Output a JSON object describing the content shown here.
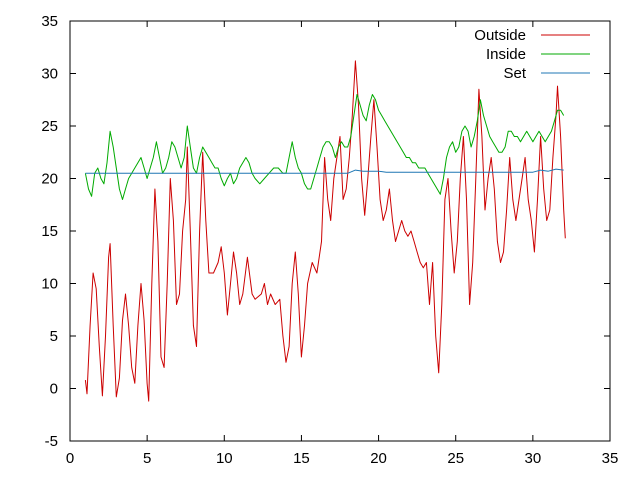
{
  "chart_data": {
    "type": "line",
    "title": "",
    "xlabel": "",
    "ylabel": "",
    "xlim": [
      0,
      35
    ],
    "ylim": [
      -5,
      35
    ],
    "xticks": [
      0,
      5,
      10,
      15,
      20,
      25,
      30,
      35
    ],
    "yticks": [
      -5,
      0,
      5,
      10,
      15,
      20,
      25,
      30,
      35
    ],
    "grid": false,
    "legend_position": "top-right",
    "series": [
      {
        "name": "Outside",
        "color": "#cc0000",
        "points": [
          [
            1.0,
            0.8
          ],
          [
            1.1,
            -0.5
          ],
          [
            1.3,
            6.0
          ],
          [
            1.5,
            11.0
          ],
          [
            1.7,
            9.5
          ],
          [
            1.9,
            4.0
          ],
          [
            2.1,
            -0.7
          ],
          [
            2.3,
            5.0
          ],
          [
            2.5,
            12.5
          ],
          [
            2.6,
            13.8
          ],
          [
            2.8,
            6.0
          ],
          [
            3.0,
            -0.8
          ],
          [
            3.2,
            1.0
          ],
          [
            3.4,
            6.5
          ],
          [
            3.6,
            9.0
          ],
          [
            3.8,
            6.0
          ],
          [
            4.0,
            2.0
          ],
          [
            4.2,
            0.5
          ],
          [
            4.4,
            6.0
          ],
          [
            4.6,
            10.0
          ],
          [
            4.8,
            6.5
          ],
          [
            5.0,
            0.5
          ],
          [
            5.1,
            -1.2
          ],
          [
            5.3,
            10.0
          ],
          [
            5.5,
            19.0
          ],
          [
            5.7,
            14.0
          ],
          [
            5.9,
            3.0
          ],
          [
            6.1,
            2.0
          ],
          [
            6.3,
            10.0
          ],
          [
            6.5,
            20.0
          ],
          [
            6.7,
            16.0
          ],
          [
            6.9,
            8.0
          ],
          [
            7.1,
            9.0
          ],
          [
            7.3,
            15.0
          ],
          [
            7.5,
            18.0
          ],
          [
            7.6,
            23.0
          ],
          [
            7.8,
            15.0
          ],
          [
            8.0,
            6.0
          ],
          [
            8.2,
            4.0
          ],
          [
            8.4,
            15.0
          ],
          [
            8.6,
            22.5
          ],
          [
            8.8,
            16.0
          ],
          [
            9.0,
            11.0
          ],
          [
            9.3,
            11.0
          ],
          [
            9.6,
            12.0
          ],
          [
            9.8,
            13.5
          ],
          [
            10.0,
            11.0
          ],
          [
            10.2,
            7.0
          ],
          [
            10.4,
            10.0
          ],
          [
            10.6,
            13.0
          ],
          [
            10.8,
            11.0
          ],
          [
            11.0,
            8.0
          ],
          [
            11.2,
            9.0
          ],
          [
            11.5,
            12.5
          ],
          [
            11.8,
            9.0
          ],
          [
            12.0,
            8.5
          ],
          [
            12.4,
            9.0
          ],
          [
            12.6,
            10.0
          ],
          [
            12.8,
            8.0
          ],
          [
            13.0,
            9.0
          ],
          [
            13.3,
            8.0
          ],
          [
            13.6,
            8.5
          ],
          [
            13.8,
            5.0
          ],
          [
            14.0,
            2.5
          ],
          [
            14.2,
            4.0
          ],
          [
            14.4,
            10.0
          ],
          [
            14.6,
            13.0
          ],
          [
            14.8,
            9.0
          ],
          [
            15.0,
            3.0
          ],
          [
            15.2,
            6.0
          ],
          [
            15.4,
            10.0
          ],
          [
            15.7,
            12.0
          ],
          [
            16.0,
            11.0
          ],
          [
            16.3,
            14.0
          ],
          [
            16.5,
            22.0
          ],
          [
            16.7,
            18.0
          ],
          [
            16.9,
            16.0
          ],
          [
            17.1,
            20.0
          ],
          [
            17.3,
            22.0
          ],
          [
            17.5,
            24.0
          ],
          [
            17.7,
            18.0
          ],
          [
            17.9,
            19.0
          ],
          [
            18.1,
            22.0
          ],
          [
            18.3,
            26.0
          ],
          [
            18.5,
            31.2
          ],
          [
            18.7,
            27.0
          ],
          [
            18.9,
            20.0
          ],
          [
            19.1,
            16.5
          ],
          [
            19.3,
            20.0
          ],
          [
            19.5,
            24.0
          ],
          [
            19.7,
            27.5
          ],
          [
            19.9,
            23.0
          ],
          [
            20.1,
            18.0
          ],
          [
            20.3,
            16.0
          ],
          [
            20.5,
            17.0
          ],
          [
            20.7,
            19.0
          ],
          [
            20.9,
            16.0
          ],
          [
            21.1,
            14.0
          ],
          [
            21.3,
            15.0
          ],
          [
            21.5,
            16.0
          ],
          [
            21.7,
            15.0
          ],
          [
            21.9,
            14.5
          ],
          [
            22.1,
            15.0
          ],
          [
            22.3,
            14.0
          ],
          [
            22.5,
            13.0
          ],
          [
            22.7,
            12.0
          ],
          [
            22.9,
            11.5
          ],
          [
            23.1,
            12.0
          ],
          [
            23.3,
            8.0
          ],
          [
            23.5,
            12.0
          ],
          [
            23.7,
            5.0
          ],
          [
            23.9,
            1.5
          ],
          [
            24.1,
            8.0
          ],
          [
            24.3,
            18.0
          ],
          [
            24.5,
            20.0
          ],
          [
            24.7,
            15.0
          ],
          [
            24.9,
            11.0
          ],
          [
            25.1,
            14.0
          ],
          [
            25.3,
            20.0
          ],
          [
            25.5,
            24.0
          ],
          [
            25.7,
            18.0
          ],
          [
            25.9,
            8.0
          ],
          [
            26.1,
            12.0
          ],
          [
            26.3,
            20.0
          ],
          [
            26.5,
            28.5
          ],
          [
            26.7,
            24.0
          ],
          [
            26.9,
            17.0
          ],
          [
            27.1,
            20.0
          ],
          [
            27.3,
            22.0
          ],
          [
            27.5,
            19.0
          ],
          [
            27.7,
            14.0
          ],
          [
            27.9,
            12.0
          ],
          [
            28.1,
            13.0
          ],
          [
            28.3,
            17.0
          ],
          [
            28.5,
            22.0
          ],
          [
            28.7,
            18.0
          ],
          [
            28.9,
            16.0
          ],
          [
            29.1,
            18.0
          ],
          [
            29.3,
            20.0
          ],
          [
            29.5,
            22.0
          ],
          [
            29.7,
            18.0
          ],
          [
            29.9,
            16.0
          ],
          [
            30.1,
            13.0
          ],
          [
            30.3,
            18.0
          ],
          [
            30.5,
            24.0
          ],
          [
            30.7,
            19.0
          ],
          [
            30.9,
            16.0
          ],
          [
            31.1,
            17.0
          ],
          [
            31.3,
            22.0
          ],
          [
            31.5,
            26.0
          ],
          [
            31.6,
            28.8
          ],
          [
            31.8,
            24.0
          ],
          [
            32.0,
            17.0
          ],
          [
            32.1,
            14.3
          ]
        ]
      },
      {
        "name": "Inside",
        "color": "#00aa00",
        "points": [
          [
            1.0,
            20.5
          ],
          [
            1.2,
            19.0
          ],
          [
            1.4,
            18.3
          ],
          [
            1.6,
            20.5
          ],
          [
            1.8,
            21.0
          ],
          [
            2.0,
            20.0
          ],
          [
            2.2,
            19.5
          ],
          [
            2.4,
            21.5
          ],
          [
            2.6,
            24.5
          ],
          [
            2.8,
            23.0
          ],
          [
            3.0,
            21.0
          ],
          [
            3.2,
            19.0
          ],
          [
            3.4,
            18.0
          ],
          [
            3.6,
            19.0
          ],
          [
            3.8,
            20.0
          ],
          [
            4.0,
            20.5
          ],
          [
            4.2,
            21.0
          ],
          [
            4.4,
            21.5
          ],
          [
            4.6,
            22.0
          ],
          [
            4.8,
            21.0
          ],
          [
            5.0,
            20.0
          ],
          [
            5.2,
            21.0
          ],
          [
            5.4,
            22.0
          ],
          [
            5.6,
            23.5
          ],
          [
            5.8,
            22.0
          ],
          [
            6.0,
            20.5
          ],
          [
            6.2,
            21.0
          ],
          [
            6.4,
            22.0
          ],
          [
            6.6,
            23.5
          ],
          [
            6.8,
            23.0
          ],
          [
            7.0,
            22.0
          ],
          [
            7.2,
            21.0
          ],
          [
            7.4,
            22.0
          ],
          [
            7.6,
            25.0
          ],
          [
            7.8,
            23.0
          ],
          [
            8.0,
            21.0
          ],
          [
            8.2,
            20.5
          ],
          [
            8.4,
            22.0
          ],
          [
            8.6,
            23.0
          ],
          [
            8.8,
            22.5
          ],
          [
            9.0,
            22.0
          ],
          [
            9.2,
            21.5
          ],
          [
            9.4,
            21.0
          ],
          [
            9.6,
            21.0
          ],
          [
            9.8,
            20.0
          ],
          [
            10.0,
            19.3
          ],
          [
            10.2,
            20.0
          ],
          [
            10.4,
            20.5
          ],
          [
            10.6,
            19.5
          ],
          [
            10.8,
            20.0
          ],
          [
            11.0,
            21.0
          ],
          [
            11.2,
            21.5
          ],
          [
            11.4,
            22.0
          ],
          [
            11.6,
            21.5
          ],
          [
            11.8,
            20.5
          ],
          [
            12.0,
            20.0
          ],
          [
            12.3,
            19.5
          ],
          [
            12.6,
            20.0
          ],
          [
            12.9,
            20.5
          ],
          [
            13.2,
            21.0
          ],
          [
            13.5,
            21.0
          ],
          [
            13.8,
            20.5
          ],
          [
            14.0,
            20.5
          ],
          [
            14.2,
            22.0
          ],
          [
            14.4,
            23.5
          ],
          [
            14.6,
            22.0
          ],
          [
            14.8,
            21.0
          ],
          [
            15.0,
            20.5
          ],
          [
            15.2,
            19.5
          ],
          [
            15.4,
            19.0
          ],
          [
            15.6,
            19.0
          ],
          [
            15.8,
            20.0
          ],
          [
            16.0,
            21.0
          ],
          [
            16.2,
            22.0
          ],
          [
            16.4,
            23.0
          ],
          [
            16.6,
            23.5
          ],
          [
            16.8,
            23.5
          ],
          [
            17.0,
            23.0
          ],
          [
            17.2,
            22.0
          ],
          [
            17.4,
            23.0
          ],
          [
            17.6,
            23.5
          ],
          [
            17.8,
            23.0
          ],
          [
            18.0,
            23.0
          ],
          [
            18.2,
            24.0
          ],
          [
            18.4,
            26.0
          ],
          [
            18.6,
            28.0
          ],
          [
            18.8,
            27.0
          ],
          [
            19.0,
            26.0
          ],
          [
            19.2,
            25.5
          ],
          [
            19.4,
            27.0
          ],
          [
            19.6,
            28.0
          ],
          [
            19.8,
            27.5
          ],
          [
            20.0,
            26.5
          ],
          [
            20.2,
            26.0
          ],
          [
            20.4,
            25.5
          ],
          [
            20.6,
            25.0
          ],
          [
            20.8,
            24.5
          ],
          [
            21.0,
            24.0
          ],
          [
            21.2,
            23.5
          ],
          [
            21.4,
            23.0
          ],
          [
            21.6,
            22.5
          ],
          [
            21.8,
            22.0
          ],
          [
            22.0,
            22.0
          ],
          [
            22.2,
            21.5
          ],
          [
            22.4,
            21.5
          ],
          [
            22.6,
            21.0
          ],
          [
            22.8,
            21.0
          ],
          [
            23.0,
            21.0
          ],
          [
            23.2,
            20.5
          ],
          [
            23.4,
            20.0
          ],
          [
            23.6,
            19.5
          ],
          [
            23.8,
            19.0
          ],
          [
            24.0,
            18.5
          ],
          [
            24.2,
            20.0
          ],
          [
            24.4,
            22.0
          ],
          [
            24.6,
            23.0
          ],
          [
            24.8,
            23.5
          ],
          [
            25.0,
            22.5
          ],
          [
            25.2,
            23.0
          ],
          [
            25.4,
            24.5
          ],
          [
            25.6,
            25.0
          ],
          [
            25.8,
            24.5
          ],
          [
            26.0,
            23.0
          ],
          [
            26.2,
            24.0
          ],
          [
            26.4,
            25.5
          ],
          [
            26.6,
            27.5
          ],
          [
            26.8,
            26.0
          ],
          [
            27.0,
            25.0
          ],
          [
            27.2,
            24.0
          ],
          [
            27.4,
            23.5
          ],
          [
            27.6,
            23.0
          ],
          [
            27.8,
            22.5
          ],
          [
            28.0,
            22.5
          ],
          [
            28.2,
            23.0
          ],
          [
            28.4,
            24.5
          ],
          [
            28.6,
            24.5
          ],
          [
            28.8,
            24.0
          ],
          [
            29.0,
            24.0
          ],
          [
            29.2,
            23.5
          ],
          [
            29.4,
            24.0
          ],
          [
            29.6,
            24.5
          ],
          [
            29.8,
            24.0
          ],
          [
            30.0,
            23.5
          ],
          [
            30.2,
            24.0
          ],
          [
            30.4,
            24.5
          ],
          [
            30.6,
            24.0
          ],
          [
            30.8,
            23.5
          ],
          [
            31.0,
            24.0
          ],
          [
            31.2,
            24.5
          ],
          [
            31.4,
            25.5
          ],
          [
            31.6,
            26.5
          ],
          [
            31.8,
            26.5
          ],
          [
            32.0,
            26.0
          ]
        ]
      },
      {
        "name": "Set",
        "color": "#1f77b4",
        "points": [
          [
            1.0,
            20.5
          ],
          [
            18.0,
            20.5
          ],
          [
            18.5,
            20.8
          ],
          [
            19.0,
            20.7
          ],
          [
            20.0,
            20.7
          ],
          [
            20.5,
            20.6
          ],
          [
            30.0,
            20.6
          ],
          [
            30.5,
            20.8
          ],
          [
            31.0,
            20.7
          ],
          [
            31.5,
            20.9
          ],
          [
            32.0,
            20.8
          ]
        ]
      }
    ]
  }
}
